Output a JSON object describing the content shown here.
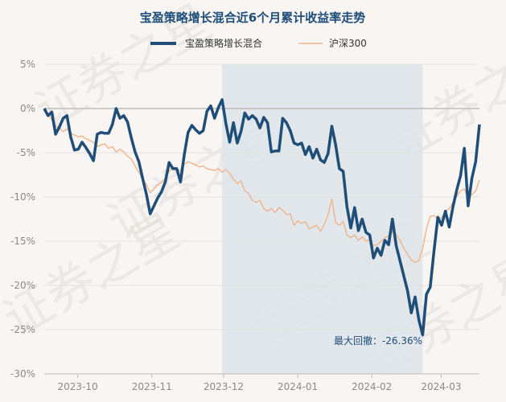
{
  "chart_data": {
    "type": "line",
    "title": "宝盈策略增长混合近6个月累计收益率走势",
    "watermark": "证券之星",
    "colors": {
      "fund": "#1f4e79",
      "index": "#f0b48a",
      "drawdown_band": "#dde4ea",
      "zero_line": "#bdbdbd",
      "grid": "#e4e1dd",
      "background": "#f8f5f2"
    },
    "y_ticks": [
      "5%",
      "0%",
      "-5%",
      "-10%",
      "-15%",
      "-20%",
      "-25%",
      "-30%"
    ],
    "ylim": [
      -30,
      5
    ],
    "y_unit": "%",
    "x_ticks": [
      "2023-10",
      "2023-11",
      "2023-12",
      "2024-01",
      "2024-02",
      "2024-03"
    ],
    "legend_position": "top-center",
    "annotation": "最大回撤：-26.36%",
    "series": [
      {
        "name": "宝盈策略增长混合",
        "values": [
          0,
          -0.8,
          -0.4,
          -2.9,
          -2.1,
          -1.1,
          -0.8,
          -3.2,
          -4.7,
          -4.6,
          -3.8,
          -4.4,
          -5.1,
          -5.9,
          -2.9,
          -2.7,
          -2.8,
          -2.8,
          -1.8,
          0,
          -1.1,
          -0.8,
          -1.5,
          -3.3,
          -4.9,
          -6.0,
          -7.9,
          -9.7,
          -11.9,
          -11.0,
          -10.1,
          -9.4,
          -8.3,
          -6.1,
          -6.8,
          -6.8,
          -8.3,
          -5.2,
          -2.7,
          -1.9,
          -2.4,
          -2.8,
          -2.5,
          -0.3,
          0.3,
          -1.1,
          0.1,
          1.0,
          -1.7,
          -3.8,
          -1.6,
          -3.9,
          -2.6,
          -0.5,
          -1.2,
          -0.8,
          -1.2,
          -2.2,
          -1.0,
          -1.6,
          -4.9,
          -4.8,
          -4.8,
          -1.1,
          -1.6,
          -2.5,
          -3.9,
          -4.1,
          -3.9,
          -5.2,
          -4.3,
          -5.6,
          -4.6,
          -5.8,
          -6.1,
          -5.1,
          -2.0,
          -4.1,
          -6.8,
          -7.1,
          -11.1,
          -13.5,
          -11.2,
          -13.8,
          -12.5,
          -14.0,
          -14.3,
          -16.9,
          -15.8,
          -16.6,
          -14.9,
          -15.4,
          -12.5,
          -15.5,
          -17.2,
          -18.9,
          -20.6,
          -23.1,
          -21.3,
          -23.9,
          -25.6,
          -21.0,
          -20.2,
          -16.1,
          -12.3,
          -13.2,
          -11.6,
          -13.4,
          -11.1,
          -9.2,
          -7.6,
          -4.5,
          -11.0,
          -7.9,
          -6.0,
          -1.8
        ]
      },
      {
        "name": "沪深300",
        "values": [
          0,
          -0.6,
          -1.3,
          -2.0,
          -2.2,
          -2.6,
          -2.3,
          -2.8,
          -3.0,
          -3.2,
          -3.1,
          -3.4,
          -3.6,
          -3.8,
          -4.3,
          -4.1,
          -4.0,
          -4.5,
          -4.3,
          -4.9,
          -4.6,
          -4.9,
          -5.4,
          -5.7,
          -6.5,
          -7.2,
          -8.0,
          -8.6,
          -9.5,
          -9.1,
          -8.6,
          -8.3,
          -7.9,
          -7.1,
          -6.6,
          -6.9,
          -7.0,
          -6.3,
          -6.0,
          -6.2,
          -6.4,
          -6.6,
          -6.5,
          -6.8,
          -6.9,
          -7.0,
          -6.8,
          -7.2,
          -6.9,
          -7.3,
          -8.0,
          -8.5,
          -8.2,
          -9.3,
          -9.6,
          -10.4,
          -10.6,
          -10.4,
          -11.3,
          -11.6,
          -11.3,
          -11.8,
          -11.2,
          -11.5,
          -12.0,
          -11.9,
          -13.2,
          -12.7,
          -13.0,
          -12.8,
          -13.6,
          -13.4,
          -13.2,
          -13.9,
          -13.1,
          -12.0,
          -10.2,
          -12.9,
          -13.2,
          -12.8,
          -14.3,
          -14.6,
          -14.3,
          -14.9,
          -14.5,
          -15.0,
          -14.8,
          -15.5,
          -15.4,
          -15.0,
          -14.6,
          -14.4,
          -13.9,
          -14.2,
          -14.9,
          -15.8,
          -16.5,
          -17.1,
          -17.4,
          -17.2,
          -15.8,
          -13.6,
          -12.2,
          -12.1,
          -12.5,
          -12.3,
          -11.7,
          -11.3,
          -10.6,
          -9.9,
          -9.3,
          -9.1,
          -10.2,
          -9.7,
          -9.3,
          -8.1
        ]
      }
    ]
  }
}
